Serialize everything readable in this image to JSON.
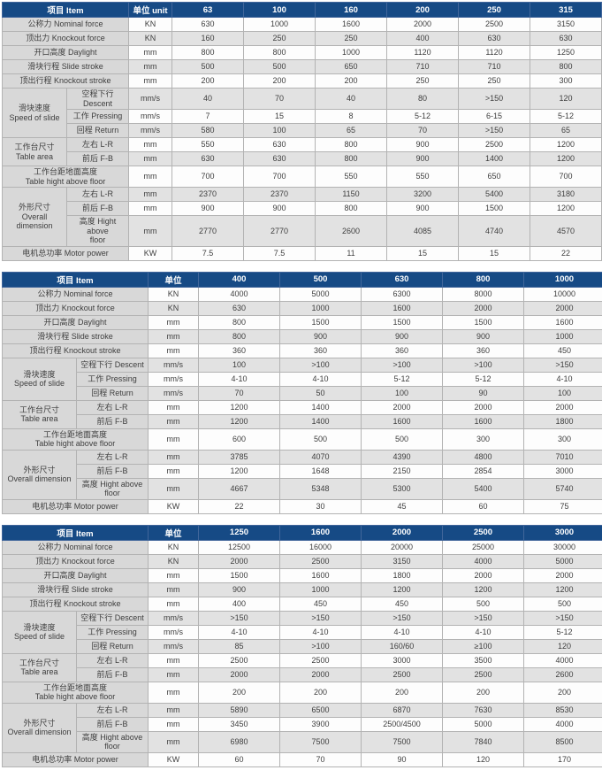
{
  "colors": {
    "header_bg": "#164a85",
    "header_text": "#ffffff",
    "label_bg": "#d8d8d8",
    "stripe_bg": "#e2e2e2",
    "row_white": "#fdfdfd",
    "border": "#b3b3b3",
    "text": "#3e3e3e"
  },
  "tables": [
    {
      "columns": {
        "item": "项目 Item",
        "unit": "单位 unit",
        "models": [
          "63",
          "100",
          "160",
          "200",
          "250",
          "315"
        ]
      },
      "rows": [
        {
          "kind": "full",
          "label": "公称力 Nominal force",
          "unit": "KN",
          "values": [
            "630",
            "1000",
            "1600",
            "2000",
            "2500",
            "3150"
          ]
        },
        {
          "kind": "full",
          "label": "顶出力 Knockout force",
          "unit": "KN",
          "values": [
            "160",
            "250",
            "250",
            "400",
            "630",
            "630"
          ]
        },
        {
          "kind": "full",
          "label": "开口高度 Daylight",
          "unit": "mm",
          "values": [
            "800",
            "800",
            "1000",
            "1120",
            "1120",
            "1250"
          ]
        },
        {
          "kind": "full",
          "label": "滑块行程 Slide stroke",
          "unit": "mm",
          "values": [
            "500",
            "500",
            "650",
            "710",
            "710",
            "800"
          ]
        },
        {
          "kind": "full",
          "label": "顶出行程 Knockout stroke",
          "unit": "mm",
          "values": [
            "200",
            "200",
            "200",
            "250",
            "250",
            "300"
          ]
        },
        {
          "kind": "group",
          "group": "滑块速度\nSpeed of slide",
          "group_rowspan": 3,
          "label": "空程下行 Descent",
          "unit": "mm/s",
          "values": [
            "40",
            "70",
            "40",
            "80",
            ">150",
            "120"
          ]
        },
        {
          "kind": "sub",
          "label": "工作 Pressing",
          "unit": "mm/s",
          "values": [
            "7",
            "15",
            "8",
            "5-12",
            "6-15",
            "5-12"
          ]
        },
        {
          "kind": "sub",
          "label": "回程 Return",
          "unit": "mm/s",
          "values": [
            "580",
            "100",
            "65",
            "70",
            ">150",
            "65"
          ]
        },
        {
          "kind": "group",
          "group": "工作台尺寸\nTable area",
          "group_rowspan": 2,
          "label": "左右 L-R",
          "unit": "mm",
          "values": [
            "550",
            "630",
            "800",
            "900",
            "2500",
            "1200"
          ]
        },
        {
          "kind": "sub",
          "label": "前后 F-B",
          "unit": "mm",
          "values": [
            "630",
            "630",
            "800",
            "900",
            "1400",
            "1200"
          ]
        },
        {
          "kind": "full",
          "label": "工作台距地面高度\nTable hight above floor",
          "unit": "mm",
          "values": [
            "700",
            "700",
            "550",
            "550",
            "650",
            "700"
          ]
        },
        {
          "kind": "group",
          "group": "外形尺寸\nOverall dimension",
          "group_rowspan": 3,
          "label": "左右 L-R",
          "unit": "mm",
          "values": [
            "2370",
            "2370",
            "1150",
            "3200",
            "5400",
            "3180"
          ]
        },
        {
          "kind": "sub",
          "label": "前后 F-B",
          "unit": "mm",
          "values": [
            "900",
            "900",
            "800",
            "900",
            "1500",
            "1200"
          ]
        },
        {
          "kind": "sub",
          "label": "高度 Hight above\nfloor",
          "unit": "mm",
          "values": [
            "2770",
            "2770",
            "2600",
            "4085",
            "4740",
            "4570"
          ]
        },
        {
          "kind": "full",
          "label": "电机总功率 Motor power",
          "unit": "KW",
          "values": [
            "7.5",
            "7.5",
            "11",
            "15",
            "15",
            "22"
          ]
        }
      ]
    },
    {
      "columns": {
        "item": "项目 Item",
        "unit": "单位",
        "models": [
          "400",
          "500",
          "630",
          "800",
          "1000"
        ]
      },
      "rows": [
        {
          "kind": "full",
          "label": "公称力 Nominal force",
          "unit": "KN",
          "values": [
            "4000",
            "5000",
            "6300",
            "8000",
            "10000"
          ]
        },
        {
          "kind": "full",
          "label": "顶出力 Knockout force",
          "unit": "KN",
          "values": [
            "630",
            "1000",
            "1600",
            "2000",
            "2000"
          ]
        },
        {
          "kind": "full",
          "label": "开口高度 Daylight",
          "unit": "mm",
          "values": [
            "800",
            "1500",
            "1500",
            "1500",
            "1600"
          ]
        },
        {
          "kind": "full",
          "label": "滑块行程 Slide stroke",
          "unit": "mm",
          "values": [
            "800",
            "900",
            "900",
            "900",
            "1000"
          ]
        },
        {
          "kind": "full",
          "label": "顶出行程 Knockout stroke",
          "unit": "mm",
          "values": [
            "360",
            "360",
            "360",
            "360",
            "450"
          ]
        },
        {
          "kind": "group",
          "group": "滑块速度\nSpeed of slide",
          "group_rowspan": 3,
          "label": "空程下行 Descent",
          "unit": "mm/s",
          "values": [
            "100",
            ">100",
            ">100",
            ">100",
            ">150"
          ]
        },
        {
          "kind": "sub",
          "label": "工作 Pressing",
          "unit": "mm/s",
          "values": [
            "4-10",
            "4-10",
            "5-12",
            "5-12",
            "4-10"
          ]
        },
        {
          "kind": "sub",
          "label": "回程 Return",
          "unit": "mm/s",
          "values": [
            "70",
            "50",
            "100",
            "90",
            "100"
          ]
        },
        {
          "kind": "group",
          "group": "工作台尺寸\nTable area",
          "group_rowspan": 2,
          "label": "左右 L-R",
          "unit": "mm",
          "values": [
            "1200",
            "1400",
            "2000",
            "2000",
            "2000"
          ]
        },
        {
          "kind": "sub",
          "label": "前后 F-B",
          "unit": "mm",
          "values": [
            "1200",
            "1400",
            "1600",
            "1600",
            "1800"
          ]
        },
        {
          "kind": "full",
          "label": "工作台距地面高度\nTable hight above floor",
          "unit": "mm",
          "values": [
            "600",
            "500",
            "500",
            "300",
            "300"
          ]
        },
        {
          "kind": "group",
          "group": "外形尺寸\nOverall dimension",
          "group_rowspan": 3,
          "label": "左右 L-R",
          "unit": "mm",
          "values": [
            "3785",
            "4070",
            "4390",
            "4800",
            "7010"
          ]
        },
        {
          "kind": "sub",
          "label": "前后 F-B",
          "unit": "mm",
          "values": [
            "1200",
            "1648",
            "2150",
            "2854",
            "3000"
          ]
        },
        {
          "kind": "sub",
          "label": "高度 Hight above\nfloor",
          "unit": "mm",
          "values": [
            "4667",
            "5348",
            "5300",
            "5400",
            "5740"
          ]
        },
        {
          "kind": "full",
          "label": "电机总功率 Motor power",
          "unit": "KW",
          "values": [
            "22",
            "30",
            "45",
            "60",
            "75"
          ]
        }
      ]
    },
    {
      "columns": {
        "item": "项目 Item",
        "unit": "单位",
        "models": [
          "1250",
          "1600",
          "2000",
          "2500",
          "3000"
        ]
      },
      "rows": [
        {
          "kind": "full",
          "label": "公称力 Nominal force",
          "unit": "KN",
          "values": [
            "12500",
            "16000",
            "20000",
            "25000",
            "30000"
          ]
        },
        {
          "kind": "full",
          "label": "顶出力 Knockout force",
          "unit": "KN",
          "values": [
            "2000",
            "2500",
            "3150",
            "4000",
            "5000"
          ]
        },
        {
          "kind": "full",
          "label": "开口高度 Daylight",
          "unit": "mm",
          "values": [
            "1500",
            "1600",
            "1800",
            "2000",
            "2000"
          ]
        },
        {
          "kind": "full",
          "label": "滑块行程 Slide stroke",
          "unit": "mm",
          "values": [
            "900",
            "1000",
            "1200",
            "1200",
            "1200"
          ]
        },
        {
          "kind": "full",
          "label": "顶出行程 Knockout stroke",
          "unit": "mm",
          "values": [
            "400",
            "450",
            "450",
            "500",
            "500"
          ]
        },
        {
          "kind": "group",
          "group": "滑块速度\nSpeed of slide",
          "group_rowspan": 3,
          "label": "空程下行 Descent",
          "unit": "mm/s",
          "values": [
            ">150",
            ">150",
            ">150",
            ">150",
            ">150"
          ]
        },
        {
          "kind": "sub",
          "label": "工作 Pressing",
          "unit": "mm/s",
          "values": [
            "4-10",
            "4-10",
            "4-10",
            "4-10",
            "5-12"
          ]
        },
        {
          "kind": "sub",
          "label": "回程 Return",
          "unit": "mm/s",
          "values": [
            "85",
            ">100",
            "160/60",
            "≥100",
            "120"
          ]
        },
        {
          "kind": "group",
          "group": "工作台尺寸\nTable area",
          "group_rowspan": 2,
          "label": "左右 L-R",
          "unit": "mm",
          "values": [
            "2500",
            "2500",
            "3000",
            "3500",
            "4000"
          ]
        },
        {
          "kind": "sub",
          "label": "前后 F-B",
          "unit": "mm",
          "values": [
            "2000",
            "2000",
            "2500",
            "2500",
            "2600"
          ]
        },
        {
          "kind": "full",
          "label": "工作台距地面高度\nTable hight above floor",
          "unit": "mm",
          "values": [
            "200",
            "200",
            "200",
            "200",
            "200"
          ]
        },
        {
          "kind": "group",
          "group": "外形尺寸\nOverall dimension",
          "group_rowspan": 3,
          "label": "左右 L-R",
          "unit": "mm",
          "values": [
            "5890",
            "6500",
            "6870",
            "7630",
            "8530"
          ]
        },
        {
          "kind": "sub",
          "label": "前后 F-B",
          "unit": "mm",
          "values": [
            "3450",
            "3900",
            "2500/4500",
            "5000",
            "4000"
          ]
        },
        {
          "kind": "sub",
          "label": "高度 Hight above\nfloor",
          "unit": "mm",
          "values": [
            "6980",
            "7500",
            "7500",
            "7840",
            "8500"
          ]
        },
        {
          "kind": "full",
          "label": "电机总功率 Motor power",
          "unit": "KW",
          "values": [
            "60",
            "70",
            "90",
            "120",
            "170"
          ]
        }
      ]
    }
  ]
}
